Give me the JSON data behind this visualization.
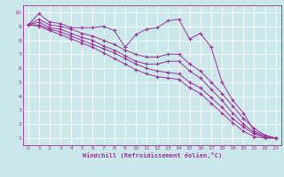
{
  "xlabel": "Windchill (Refroidissement éolien,°C)",
  "bg_color": "#cae8ea",
  "line_color": "#993399",
  "grid_color": "#ffffff",
  "xlim": [
    -0.5,
    23.5
  ],
  "ylim": [
    0.5,
    10.5
  ],
  "xticks": [
    0,
    1,
    2,
    3,
    4,
    5,
    6,
    7,
    8,
    9,
    10,
    11,
    12,
    13,
    14,
    15,
    16,
    17,
    18,
    19,
    20,
    21,
    22,
    23
  ],
  "yticks": [
    1,
    2,
    3,
    4,
    5,
    6,
    7,
    8,
    9,
    10
  ],
  "series_zigzag": [
    9.1,
    9.9,
    9.3,
    9.2,
    8.9,
    8.9,
    8.9,
    9.0,
    8.7,
    7.5,
    8.4,
    8.8,
    8.9,
    9.4,
    9.5,
    8.1,
    8.5,
    7.5,
    5.0,
    3.7,
    2.8,
    1.5,
    1.2,
    1.0
  ],
  "series_smooth1": [
    9.1,
    9.5,
    9.1,
    9.0,
    8.8,
    8.5,
    8.3,
    8.0,
    7.7,
    7.3,
    7.0,
    6.8,
    6.8,
    7.0,
    7.0,
    6.3,
    5.8,
    5.0,
    4.2,
    3.3,
    2.4,
    1.7,
    1.2,
    1.0
  ],
  "series_smooth2": [
    9.1,
    9.3,
    8.9,
    8.8,
    8.5,
    8.2,
    8.0,
    7.6,
    7.3,
    6.9,
    6.5,
    6.3,
    6.3,
    6.5,
    6.5,
    5.8,
    5.3,
    4.5,
    3.7,
    2.8,
    2.0,
    1.4,
    1.1,
    1.0
  ],
  "series_linear1": [
    9.1,
    9.1,
    8.8,
    8.6,
    8.3,
    8.0,
    7.7,
    7.4,
    7.1,
    6.7,
    6.3,
    6.0,
    5.8,
    5.7,
    5.6,
    5.0,
    4.6,
    3.9,
    3.2,
    2.4,
    1.8,
    1.3,
    1.05,
    1.0
  ],
  "series_linear2": [
    9.1,
    9.0,
    8.7,
    8.4,
    8.1,
    7.8,
    7.5,
    7.1,
    6.7,
    6.3,
    5.9,
    5.6,
    5.4,
    5.3,
    5.2,
    4.6,
    4.2,
    3.5,
    2.8,
    2.1,
    1.5,
    1.1,
    1.0,
    1.0
  ]
}
